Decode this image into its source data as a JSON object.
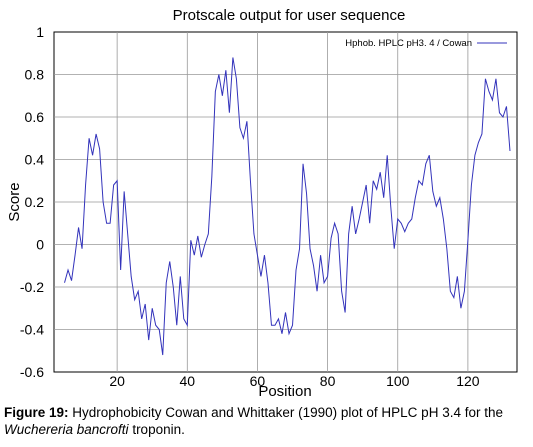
{
  "chart_data": {
    "type": "line",
    "title": "Protscale  output  for  user sequence",
    "xlabel": "Position",
    "ylabel": "Score",
    "xlim": [
      2,
      134
    ],
    "ylim": [
      -0.6,
      1
    ],
    "xticks": [
      20,
      40,
      60,
      80,
      100,
      120
    ],
    "yticks": [
      -0.6,
      -0.4,
      -0.2,
      0,
      0.2,
      0.4,
      0.6,
      0.8,
      1
    ],
    "ytick_labels": [
      "-0.6",
      "-0.4",
      "-0.2",
      "0",
      "0.2",
      "0.4",
      "0.6",
      "0.8",
      "1"
    ],
    "grid": true,
    "legend_position": "top-right",
    "series_color": "#3333bb",
    "series": [
      {
        "name": "Hphob. HPLC  pH3. 4  / Cowan",
        "x": [
          5,
          6,
          7,
          8,
          9,
          10,
          11,
          12,
          13,
          14,
          15,
          16,
          17,
          18,
          19,
          20,
          21,
          22,
          23,
          24,
          25,
          26,
          27,
          28,
          29,
          30,
          31,
          32,
          33,
          34,
          35,
          36,
          37,
          38,
          39,
          40,
          41,
          42,
          43,
          44,
          45,
          46,
          47,
          48,
          49,
          50,
          51,
          52,
          53,
          54,
          55,
          56,
          57,
          58,
          59,
          60,
          61,
          62,
          63,
          64,
          65,
          66,
          67,
          68,
          69,
          70,
          71,
          72,
          73,
          74,
          75,
          76,
          77,
          78,
          79,
          80,
          81,
          82,
          83,
          84,
          85,
          86,
          87,
          88,
          89,
          90,
          91,
          92,
          93,
          94,
          95,
          96,
          97,
          98,
          99,
          100,
          101,
          102,
          103,
          104,
          105,
          106,
          107,
          108,
          109,
          110,
          111,
          112,
          113,
          114,
          115,
          116,
          117,
          118,
          119,
          120,
          121,
          122,
          123,
          124,
          125,
          126,
          127,
          128,
          129,
          130,
          131,
          132
        ],
        "values": [
          -0.18,
          -0.12,
          -0.17,
          -0.05,
          0.08,
          -0.02,
          0.28,
          0.5,
          0.42,
          0.52,
          0.45,
          0.2,
          0.1,
          0.1,
          0.28,
          0.3,
          -0.12,
          0.25,
          0.05,
          -0.15,
          -0.26,
          -0.22,
          -0.35,
          -0.28,
          -0.45,
          -0.3,
          -0.38,
          -0.4,
          -0.52,
          -0.18,
          -0.08,
          -0.2,
          -0.38,
          -0.15,
          -0.35,
          -0.38,
          0.02,
          -0.05,
          0.04,
          -0.06,
          0.0,
          0.05,
          0.32,
          0.72,
          0.8,
          0.7,
          0.82,
          0.62,
          0.88,
          0.78,
          0.55,
          0.5,
          0.58,
          0.3,
          0.05,
          -0.05,
          -0.15,
          -0.05,
          -0.18,
          -0.38,
          -0.38,
          -0.35,
          -0.42,
          -0.32,
          -0.42,
          -0.38,
          -0.12,
          -0.02,
          0.38,
          0.24,
          -0.02,
          -0.1,
          -0.22,
          -0.05,
          -0.18,
          -0.15,
          0.03,
          0.1,
          0.05,
          -0.22,
          -0.32,
          0.05,
          0.18,
          0.05,
          0.12,
          0.2,
          0.28,
          0.1,
          0.3,
          0.26,
          0.34,
          0.22,
          0.42,
          0.18,
          -0.02,
          0.12,
          0.1,
          0.06,
          0.1,
          0.12,
          0.22,
          0.3,
          0.28,
          0.38,
          0.42,
          0.25,
          0.18,
          0.22,
          0.12,
          -0.02,
          -0.22,
          -0.25,
          -0.15,
          -0.3,
          -0.22,
          0.02,
          0.28,
          0.42,
          0.48,
          0.52,
          0.78,
          0.72,
          0.68,
          0.78,
          0.62,
          0.6,
          0.65,
          0.44
        ]
      }
    ]
  },
  "caption": {
    "label": "Figure 19:",
    "text_before": " Hydrophobicity Cowan and Whittaker (1990) plot of HPLC pH 3.4 for the ",
    "species": "Wuchereria bancrofti",
    "text_after": " troponin."
  }
}
